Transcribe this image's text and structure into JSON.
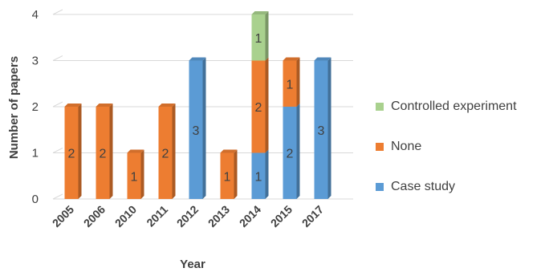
{
  "chart_data": {
    "type": "bar",
    "stacked": true,
    "categories": [
      "2005",
      "2006",
      "2010",
      "2011",
      "2012",
      "2013",
      "2014",
      "2015",
      "2017"
    ],
    "series": [
      {
        "name": "Case study",
        "color": "#5b9bd5",
        "values": [
          0,
          0,
          0,
          0,
          3,
          0,
          1,
          2,
          3
        ]
      },
      {
        "name": "None",
        "color": "#ed7d31",
        "values": [
          2,
          2,
          1,
          2,
          0,
          1,
          2,
          1,
          0
        ]
      },
      {
        "name": "Controlled experiment",
        "color": "#a9d18e",
        "values": [
          0,
          0,
          0,
          0,
          0,
          0,
          1,
          0,
          0
        ]
      }
    ],
    "xlabel": "Year",
    "ylabel": "Number of papers",
    "ylim": [
      0,
      4
    ],
    "yticks": [
      "0",
      "1",
      "2",
      "3",
      "4"
    ],
    "grid": true,
    "data_labels": true,
    "legend_position": "right",
    "legend_order": [
      "Controlled experiment",
      "None",
      "Case study"
    ]
  }
}
